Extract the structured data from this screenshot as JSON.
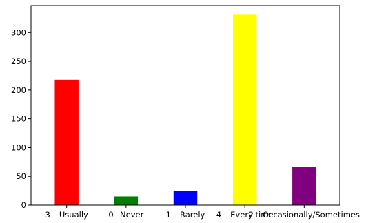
{
  "chart_data": {
    "type": "bar",
    "categories": [
      "3 – Usually",
      "0– Never",
      "1 – Rarely",
      "4 – Every time",
      "2 – Occasionally/Sometimes"
    ],
    "values": [
      218,
      15,
      24,
      331,
      66
    ],
    "colors": [
      "#ff0000",
      "#008000",
      "#0000ff",
      "#ffff00",
      "#800080"
    ],
    "title": "",
    "xlabel": "",
    "ylabel": "",
    "ylim": [
      0,
      347
    ],
    "yticks": [
      0,
      50,
      100,
      150,
      200,
      250,
      300
    ],
    "grid": false,
    "legend": "none"
  }
}
